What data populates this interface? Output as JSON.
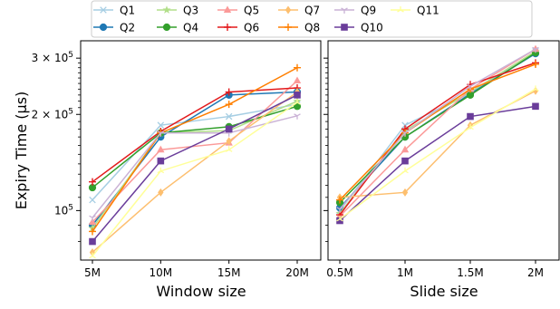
{
  "chart_data": {
    "type": "line",
    "y_scale": "log",
    "grid": false,
    "legend": {
      "placement": "top",
      "entries": [
        "Q1",
        "Q2",
        "Q3",
        "Q4",
        "Q5",
        "Q6",
        "Q7",
        "Q8",
        "Q9",
        "Q10",
        "Q11"
      ]
    },
    "ylabel": "Expiry Time (μs)",
    "y_ticks": [
      {
        "value": 100000,
        "mantissa": "10",
        "exp": "5",
        "coef": ""
      },
      {
        "value": 200000,
        "mantissa": "10",
        "exp": "5",
        "coef": "2 × "
      },
      {
        "value": 300000,
        "mantissa": "10",
        "exp": "5",
        "coef": "3 × "
      }
    ],
    "ylim": [
      70000,
      340000
    ],
    "series_style": [
      {
        "name": "Q1",
        "color": "#a6cee3",
        "marker": "x"
      },
      {
        "name": "Q2",
        "color": "#1f78b4",
        "marker": "circle"
      },
      {
        "name": "Q3",
        "color": "#b2df8a",
        "marker": "star"
      },
      {
        "name": "Q4",
        "color": "#33a02c",
        "marker": "circle"
      },
      {
        "name": "Q5",
        "color": "#fb9a99",
        "marker": "triangle"
      },
      {
        "name": "Q6",
        "color": "#e31a1c",
        "marker": "plus"
      },
      {
        "name": "Q7",
        "color": "#fdbf6f",
        "marker": "diamond"
      },
      {
        "name": "Q8",
        "color": "#ff7f00",
        "marker": "plus"
      },
      {
        "name": "Q9",
        "color": "#cab2d6",
        "marker": "tri_down"
      },
      {
        "name": "Q10",
        "color": "#6a3d9a",
        "marker": "square"
      },
      {
        "name": "Q11",
        "color": "#ffff99",
        "marker": "tri_up"
      }
    ],
    "panels": [
      {
        "xlabel": "Window size",
        "categories": [
          "5M",
          "10M",
          "15M",
          "20M"
        ],
        "series": [
          {
            "name": "Q1",
            "values": [
              108000,
              185000,
              197000,
              215000
            ]
          },
          {
            "name": "Q2",
            "values": [
              90000,
              170000,
              230000,
              235000
            ]
          },
          {
            "name": "Q3",
            "values": [
              88000,
              175000,
              178000,
              220000
            ]
          },
          {
            "name": "Q4",
            "values": [
              118000,
              175000,
              183000,
              212000
            ]
          },
          {
            "name": "Q5",
            "values": [
              92000,
              155000,
              163000,
              255000
            ]
          },
          {
            "name": "Q6",
            "values": [
              123000,
              177000,
              235000,
              242000
            ]
          },
          {
            "name": "Q7",
            "values": [
              74000,
              114000,
              165000,
              235000
            ]
          },
          {
            "name": "Q8",
            "values": [
              86000,
              175000,
              215000,
              280000
            ]
          },
          {
            "name": "Q9",
            "values": [
              95000,
              175000,
              175000,
              198000
            ]
          },
          {
            "name": "Q10",
            "values": [
              80000,
              143000,
              180000,
              230000
            ]
          },
          {
            "name": "Q11",
            "values": [
              72000,
              133000,
              155000,
              218000
            ]
          }
        ]
      },
      {
        "xlabel": "Slide size",
        "categories": [
          "0.5M",
          "1M",
          "1.5M",
          "2M"
        ],
        "series": [
          {
            "name": "Q1",
            "values": [
              100000,
              185000,
              233000,
              315000
            ]
          },
          {
            "name": "Q2",
            "values": [
              102000,
              170000,
              232000,
              310000
            ]
          },
          {
            "name": "Q3",
            "values": [
              98000,
              178000,
              235000,
              315000
            ]
          },
          {
            "name": "Q4",
            "values": [
              106000,
              170000,
              230000,
              312000
            ]
          },
          {
            "name": "Q5",
            "values": [
              96000,
              155000,
              240000,
              320000
            ]
          },
          {
            "name": "Q6",
            "values": [
              97000,
              180000,
              248000,
              290000
            ]
          },
          {
            "name": "Q7",
            "values": [
              110000,
              114000,
              185000,
              237000
            ]
          },
          {
            "name": "Q8",
            "values": [
              108000,
              175000,
              240000,
              287000
            ]
          },
          {
            "name": "Q9",
            "values": [
              101000,
              175000,
              245000,
              320000
            ]
          },
          {
            "name": "Q10",
            "values": [
              93000,
              143000,
              197000,
              212000
            ]
          },
          {
            "name": "Q11",
            "values": [
              94000,
              133000,
              182000,
              240000
            ]
          }
        ]
      }
    ]
  }
}
